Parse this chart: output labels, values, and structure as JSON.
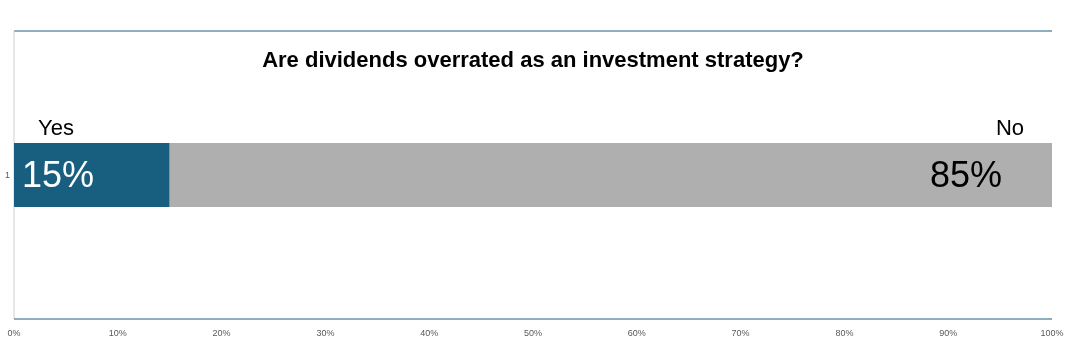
{
  "chart_data": {
    "type": "bar",
    "title": "Are dividends overrated as an investment strategy?",
    "orientation": "horizontal",
    "stacked": true,
    "categories": [
      "1"
    ],
    "series": [
      {
        "name": "Yes",
        "color": "#175e7f",
        "values": [
          15
        ],
        "value_labels": [
          "15%"
        ]
      },
      {
        "name": "No",
        "color": "#afafaf",
        "values": [
          85
        ],
        "value_labels": [
          "85%"
        ]
      }
    ],
    "xlim": [
      0,
      100
    ],
    "xticks": [
      {
        "value": 0,
        "label": "0%"
      },
      {
        "value": 10,
        "label": "10%"
      },
      {
        "value": 20,
        "label": "20%"
      },
      {
        "value": 30,
        "label": "30%"
      },
      {
        "value": 40,
        "label": "40%"
      },
      {
        "value": 50,
        "label": "50%"
      },
      {
        "value": 60,
        "label": "60%"
      },
      {
        "value": 70,
        "label": "70%"
      },
      {
        "value": 80,
        "label": "80%"
      },
      {
        "value": 90,
        "label": "90%"
      },
      {
        "value": 100,
        "label": "100%"
      }
    ],
    "grid": false
  }
}
